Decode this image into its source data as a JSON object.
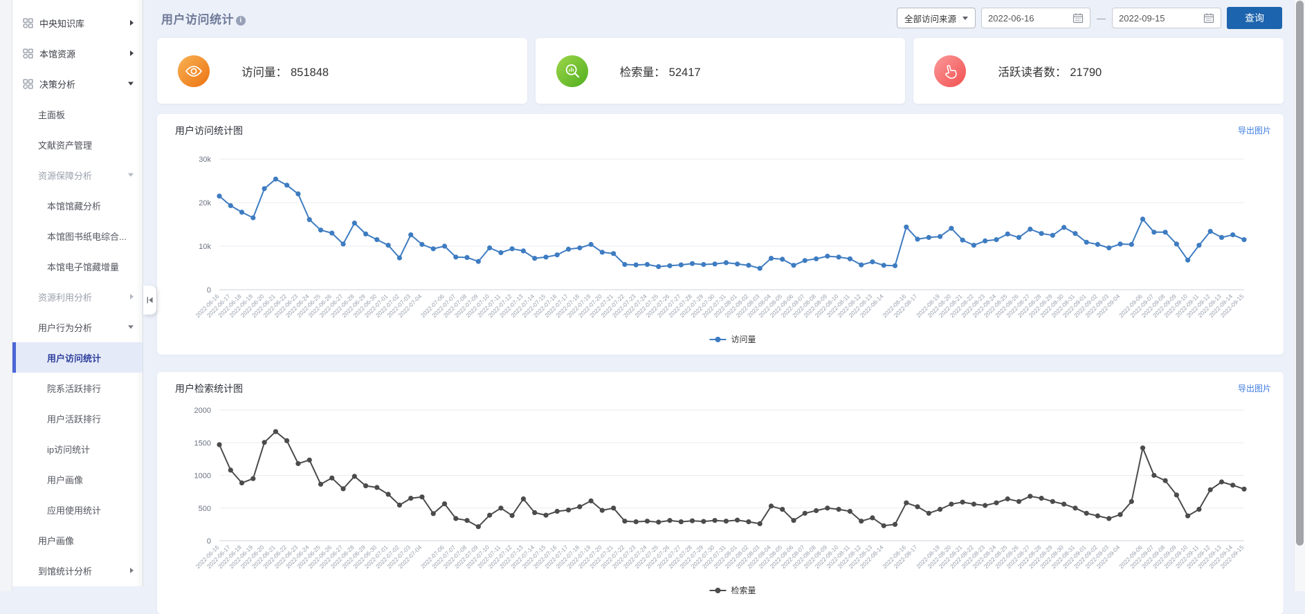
{
  "page": {
    "title": "用户访问统计"
  },
  "sidebar": {
    "items": [
      {
        "label": "中央知识库",
        "level": 1,
        "icon": "apps-grid-icon",
        "arrow": "right"
      },
      {
        "label": "本馆资源",
        "level": 1,
        "icon": "apps-grid-icon",
        "arrow": "right"
      },
      {
        "label": "决策分析",
        "level": 1,
        "icon": "apps-grid-icon",
        "arrow": "down"
      },
      {
        "label": "主面板",
        "level": 2
      },
      {
        "label": "文献资产管理",
        "level": 2
      },
      {
        "label": "资源保障分析",
        "level": 2,
        "arrow": "down",
        "muted": true
      },
      {
        "label": "本馆馆藏分析",
        "level": 3
      },
      {
        "label": "本馆图书纸电综合...",
        "level": 3
      },
      {
        "label": "本馆电子馆藏增量",
        "level": 3
      },
      {
        "label": "资源利用分析",
        "level": 2,
        "arrow": "right",
        "muted": true
      },
      {
        "label": "用户行为分析",
        "level": 2,
        "arrow": "down"
      },
      {
        "label": "用户访问统计",
        "level": 3,
        "active": true
      },
      {
        "label": "院系活跃排行",
        "level": 3
      },
      {
        "label": "用户活跃排行",
        "level": 3
      },
      {
        "label": "ip访问统计",
        "level": 3
      },
      {
        "label": "用户画像",
        "level": 3
      },
      {
        "label": "应用使用统计",
        "level": 3
      },
      {
        "label": "用户画像",
        "level": 2
      },
      {
        "label": "到馆统计分析",
        "level": 2,
        "arrow": "right"
      }
    ]
  },
  "filters": {
    "source": "全部访问来源",
    "date_start": "2022-06-16",
    "separator": "—",
    "date_end": "2022-09-15",
    "query": "查询"
  },
  "stats": [
    {
      "icon": "eye-icon",
      "label": "访问量：",
      "value": "851848",
      "color_from": "#f8b254",
      "color_to": "#ec7211"
    },
    {
      "icon": "search-icon",
      "label": "检索量：",
      "value": "52417",
      "color_from": "#9ed64a",
      "color_to": "#4fae1f"
    },
    {
      "icon": "hand-pointer-icon",
      "label": "活跃读者数：",
      "value": "21790",
      "color_from": "#fa9a9a",
      "color_to": "#f34f4f"
    }
  ],
  "panels": [
    {
      "title": "用户访问统计图",
      "export": "导出图片"
    },
    {
      "title": "用户检索统计图",
      "export": "导出图片"
    }
  ],
  "chart_data": [
    {
      "type": "line",
      "title": "用户访问统计图",
      "legend": [
        "访问量"
      ],
      "legend_position": "bottom",
      "grid": true,
      "line_color": "#3e7cc1",
      "ylim": [
        0,
        30000
      ],
      "ytick_labels": [
        "0",
        "10k",
        "20k",
        "30k"
      ],
      "x": [
        "2022-06-16",
        "2022-06-17",
        "2022-06-18",
        "2022-06-19",
        "2022-06-20",
        "2022-06-21",
        "2022-06-22",
        "2022-06-23",
        "2022-06-24",
        "2022-06-25",
        "2022-06-26",
        "2022-06-27",
        "2022-06-28",
        "2022-06-29",
        "2022-06-30",
        "2022-07-01",
        "2022-07-02",
        "2022-07-03",
        "2022-07-04",
        "2022-07-05",
        "2022-07-06",
        "2022-07-07",
        "2022-07-08",
        "2022-07-09",
        "2022-07-10",
        "2022-07-11",
        "2022-07-12",
        "2022-07-13",
        "2022-07-14",
        "2022-07-15",
        "2022-07-16",
        "2022-07-17",
        "2022-07-18",
        "2022-07-19",
        "2022-07-20",
        "2022-07-21",
        "2022-07-22",
        "2022-07-23",
        "2022-07-24",
        "2022-07-25",
        "2022-07-26",
        "2022-07-27",
        "2022-07-28",
        "2022-07-29",
        "2022-07-30",
        "2022-07-31",
        "2022-08-01",
        "2022-08-02",
        "2022-08-03",
        "2022-08-04",
        "2022-08-05",
        "2022-08-06",
        "2022-08-07",
        "2022-08-08",
        "2022-08-09",
        "2022-08-10",
        "2022-08-11",
        "2022-08-12",
        "2022-08-13",
        "2022-08-14",
        "2022-08-15",
        "2022-08-16",
        "2022-08-17",
        "2022-08-18",
        "2022-08-19",
        "2022-08-20",
        "2022-08-21",
        "2022-08-22",
        "2022-08-23",
        "2022-08-24",
        "2022-08-25",
        "2022-08-26",
        "2022-08-27",
        "2022-08-28",
        "2022-08-29",
        "2022-08-30",
        "2022-08-31",
        "2022-09-01",
        "2022-09-02",
        "2022-09-03",
        "2022-09-04",
        "2022-09-05",
        "2022-09-06",
        "2022-09-07",
        "2022-09-08",
        "2022-09-09",
        "2022-09-10",
        "2022-09-11",
        "2022-09-12",
        "2022-09-13",
        "2022-09-14",
        "2022-09-15"
      ],
      "series": [
        {
          "name": "访问量",
          "values": [
            21500,
            19300,
            17800,
            16500,
            23200,
            25400,
            24000,
            22000,
            16100,
            13700,
            13000,
            10500,
            15300,
            12800,
            11500,
            10200,
            7300,
            12600,
            10400,
            9400,
            10000,
            7500,
            7400,
            6500,
            9600,
            8500,
            9400,
            8900,
            7200,
            7500,
            8000,
            9300,
            9600,
            10400,
            8600,
            8300,
            5800,
            5700,
            5800,
            5300,
            5500,
            5700,
            6000,
            5800,
            5900,
            6200,
            5900,
            5600,
            4900,
            7200,
            7000,
            5600,
            6700,
            7100,
            7700,
            7500,
            7100,
            5700,
            6400,
            5600,
            5500,
            14400,
            11600,
            12000,
            12200,
            14100,
            11400,
            10200,
            11200,
            11500,
            12800,
            12000,
            13900,
            12900,
            12500,
            14300,
            12900,
            10900,
            10400,
            9600,
            10500,
            10400,
            16200,
            13200,
            13200,
            10500,
            6800,
            10200,
            13400,
            12000,
            12600,
            11500
          ]
        }
      ]
    },
    {
      "type": "line",
      "title": "用户检索统计图",
      "legend": [
        "检索量"
      ],
      "legend_position": "bottom",
      "grid": true,
      "line_color": "#4b4b4b",
      "ylim": [
        0,
        2000
      ],
      "ytick_labels": [
        "0",
        "500",
        "1000",
        "1500",
        "2000"
      ],
      "x": [
        "2022-06-16",
        "2022-06-17",
        "2022-06-18",
        "2022-06-19",
        "2022-06-20",
        "2022-06-21",
        "2022-06-22",
        "2022-06-23",
        "2022-06-24",
        "2022-06-25",
        "2022-06-26",
        "2022-06-27",
        "2022-06-28",
        "2022-06-29",
        "2022-06-30",
        "2022-07-01",
        "2022-07-02",
        "2022-07-03",
        "2022-07-04",
        "2022-07-05",
        "2022-07-06",
        "2022-07-07",
        "2022-07-08",
        "2022-07-09",
        "2022-07-10",
        "2022-07-11",
        "2022-07-12",
        "2022-07-13",
        "2022-07-14",
        "2022-07-15",
        "2022-07-16",
        "2022-07-17",
        "2022-07-18",
        "2022-07-19",
        "2022-07-20",
        "2022-07-21",
        "2022-07-22",
        "2022-07-23",
        "2022-07-24",
        "2022-07-25",
        "2022-07-26",
        "2022-07-27",
        "2022-07-28",
        "2022-07-29",
        "2022-07-30",
        "2022-07-31",
        "2022-08-01",
        "2022-08-02",
        "2022-08-03",
        "2022-08-04",
        "2022-08-05",
        "2022-08-06",
        "2022-08-07",
        "2022-08-08",
        "2022-08-09",
        "2022-08-10",
        "2022-08-11",
        "2022-08-12",
        "2022-08-13",
        "2022-08-14",
        "2022-08-15",
        "2022-08-16",
        "2022-08-17",
        "2022-08-18",
        "2022-08-19",
        "2022-08-20",
        "2022-08-21",
        "2022-08-22",
        "2022-08-23",
        "2022-08-24",
        "2022-08-25",
        "2022-08-26",
        "2022-08-27",
        "2022-08-28",
        "2022-08-29",
        "2022-08-30",
        "2022-08-31",
        "2022-09-01",
        "2022-09-02",
        "2022-09-03",
        "2022-09-04",
        "2022-09-05",
        "2022-09-06",
        "2022-09-07",
        "2022-09-08",
        "2022-09-09",
        "2022-09-10",
        "2022-09-11",
        "2022-09-12",
        "2022-09-13",
        "2022-09-14",
        "2022-09-15"
      ],
      "series": [
        {
          "name": "检索量",
          "values": [
            1470,
            1080,
            885,
            950,
            1505,
            1670,
            1530,
            1180,
            1235,
            865,
            960,
            795,
            985,
            840,
            815,
            710,
            545,
            650,
            670,
            415,
            565,
            340,
            310,
            215,
            390,
            500,
            385,
            640,
            430,
            390,
            450,
            470,
            520,
            610,
            465,
            500,
            300,
            290,
            300,
            285,
            310,
            290,
            305,
            295,
            310,
            300,
            315,
            290,
            260,
            530,
            480,
            310,
            420,
            460,
            500,
            480,
            450,
            300,
            350,
            230,
            250,
            580,
            520,
            420,
            480,
            560,
            590,
            560,
            540,
            580,
            640,
            600,
            680,
            650,
            600,
            560,
            500,
            420,
            380,
            340,
            400,
            600,
            1420,
            1000,
            920,
            700,
            380,
            480,
            780,
            900,
            850,
            790
          ]
        }
      ]
    }
  ]
}
